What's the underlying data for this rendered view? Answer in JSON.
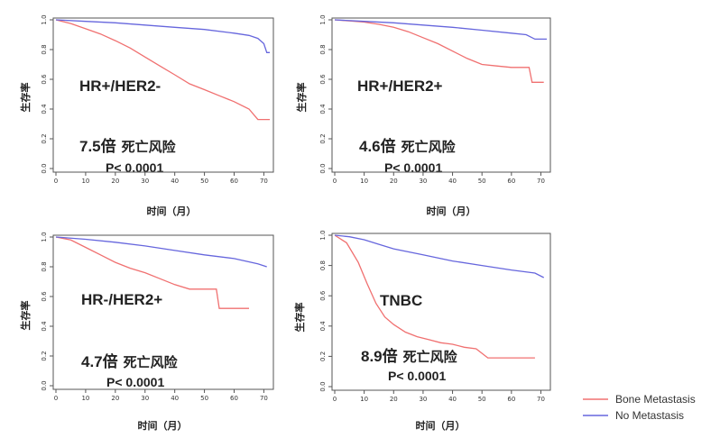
{
  "chart_data": [
    {
      "type": "line",
      "subtype_label": "HR+/HER2-",
      "risk_value": "7.5倍",
      "risk_suffix": "死亡风险",
      "p_value": "P< 0.0001",
      "ylabel": "生存率",
      "xlabel": "时间（月）",
      "xlim": [
        0,
        72
      ],
      "ylim": [
        0,
        1.0
      ],
      "x_ticks": [
        0,
        10,
        20,
        30,
        40,
        50,
        60,
        70
      ],
      "y_ticks": [
        "0.0",
        "0.2",
        "0.4",
        "0.6",
        "0.8",
        "1.0"
      ],
      "series": [
        {
          "name": "Bone Metastasis",
          "color": "#f07070",
          "x": [
            0,
            5,
            10,
            15,
            20,
            25,
            30,
            35,
            40,
            45,
            50,
            55,
            60,
            65,
            68,
            72
          ],
          "y": [
            1.0,
            0.975,
            0.94,
            0.905,
            0.86,
            0.81,
            0.75,
            0.69,
            0.63,
            0.57,
            0.53,
            0.49,
            0.45,
            0.4,
            0.33,
            0.33
          ]
        },
        {
          "name": "No Metastasis",
          "color": "#6666dd",
          "x": [
            0,
            10,
            20,
            30,
            40,
            50,
            60,
            65,
            68,
            70,
            71,
            72
          ],
          "y": [
            1.0,
            0.99,
            0.98,
            0.965,
            0.95,
            0.935,
            0.91,
            0.895,
            0.875,
            0.84,
            0.78,
            0.78
          ]
        }
      ]
    },
    {
      "type": "line",
      "subtype_label": "HR+/HER2+",
      "risk_value": "4.6倍",
      "risk_suffix": "死亡风险",
      "p_value": "P< 0.0001",
      "ylabel": "生存率",
      "xlabel": "时间（月）",
      "xlim": [
        0,
        72
      ],
      "ylim": [
        0,
        1.0
      ],
      "x_ticks": [
        0,
        10,
        20,
        30,
        40,
        50,
        60,
        70
      ],
      "y_ticks": [
        "0.0",
        "0.2",
        "0.4",
        "0.6",
        "0.8",
        "1.0"
      ],
      "series": [
        {
          "name": "Bone Metastasis",
          "color": "#f07070",
          "x": [
            0,
            10,
            15,
            20,
            25,
            30,
            35,
            40,
            45,
            50,
            55,
            60,
            66,
            67,
            71
          ],
          "y": [
            1.0,
            0.985,
            0.97,
            0.95,
            0.92,
            0.88,
            0.84,
            0.79,
            0.74,
            0.7,
            0.69,
            0.68,
            0.68,
            0.58,
            0.58
          ]
        },
        {
          "name": "No Metastasis",
          "color": "#6666dd",
          "x": [
            0,
            10,
            20,
            30,
            40,
            50,
            60,
            65,
            68,
            72
          ],
          "y": [
            1.0,
            0.99,
            0.98,
            0.965,
            0.95,
            0.93,
            0.91,
            0.9,
            0.87,
            0.87
          ]
        }
      ]
    },
    {
      "type": "line",
      "subtype_label": "HR-/HER2+",
      "risk_value": "4.7倍",
      "risk_suffix": "死亡风险",
      "p_value": "P< 0.0001",
      "ylabel": "生存率",
      "xlabel": "时间（月）",
      "xlim": [
        0,
        72
      ],
      "ylim": [
        0,
        1.0
      ],
      "x_ticks": [
        0,
        10,
        20,
        30,
        40,
        50,
        60,
        70
      ],
      "y_ticks": [
        "0.0",
        "0.2",
        "0.4",
        "0.6",
        "0.8",
        "1.0"
      ],
      "series": [
        {
          "name": "Bone Metastasis",
          "color": "#f07070",
          "x": [
            0,
            5,
            10,
            15,
            20,
            25,
            30,
            35,
            40,
            45,
            50,
            54,
            55,
            60,
            65
          ],
          "y": [
            1.0,
            0.98,
            0.93,
            0.88,
            0.83,
            0.79,
            0.76,
            0.72,
            0.68,
            0.65,
            0.65,
            0.65,
            0.52,
            0.52,
            0.52
          ]
        },
        {
          "name": "No Metastasis",
          "color": "#6666dd",
          "x": [
            0,
            10,
            20,
            30,
            40,
            50,
            60,
            68,
            71
          ],
          "y": [
            1.0,
            0.985,
            0.965,
            0.94,
            0.91,
            0.88,
            0.855,
            0.82,
            0.8
          ]
        }
      ]
    },
    {
      "type": "line",
      "subtype_label": "TNBC",
      "risk_value": "8.9倍",
      "risk_suffix": "死亡风险",
      "p_value": "P< 0.0001",
      "ylabel": "生存率",
      "xlabel": "时间（月）",
      "xlim": [
        0,
        72
      ],
      "ylim": [
        0,
        1.0
      ],
      "x_ticks": [
        0,
        10,
        20,
        30,
        40,
        50,
        60,
        70
      ],
      "y_ticks": [
        "0.0",
        "0.2",
        "0.4",
        "0.6",
        "0.8",
        "1.0"
      ],
      "series": [
        {
          "name": "Bone Metastasis",
          "color": "#f07070",
          "x": [
            0,
            4,
            8,
            11,
            14,
            17,
            20,
            24,
            28,
            32,
            36,
            40,
            44,
            48,
            52,
            60,
            68
          ],
          "y": [
            1.0,
            0.95,
            0.82,
            0.68,
            0.55,
            0.46,
            0.41,
            0.36,
            0.33,
            0.31,
            0.29,
            0.28,
            0.26,
            0.25,
            0.19,
            0.19,
            0.19
          ]
        },
        {
          "name": "No Metastasis",
          "color": "#6666dd",
          "x": [
            0,
            5,
            10,
            15,
            20,
            30,
            40,
            50,
            60,
            68,
            71
          ],
          "y": [
            1.0,
            0.99,
            0.97,
            0.94,
            0.91,
            0.87,
            0.83,
            0.8,
            0.77,
            0.75,
            0.72
          ]
        }
      ]
    }
  ],
  "legend": {
    "items": [
      {
        "label": "Bone Metastasis",
        "color": "#f07070"
      },
      {
        "label": "No Metastasis",
        "color": "#6666dd"
      }
    ]
  }
}
